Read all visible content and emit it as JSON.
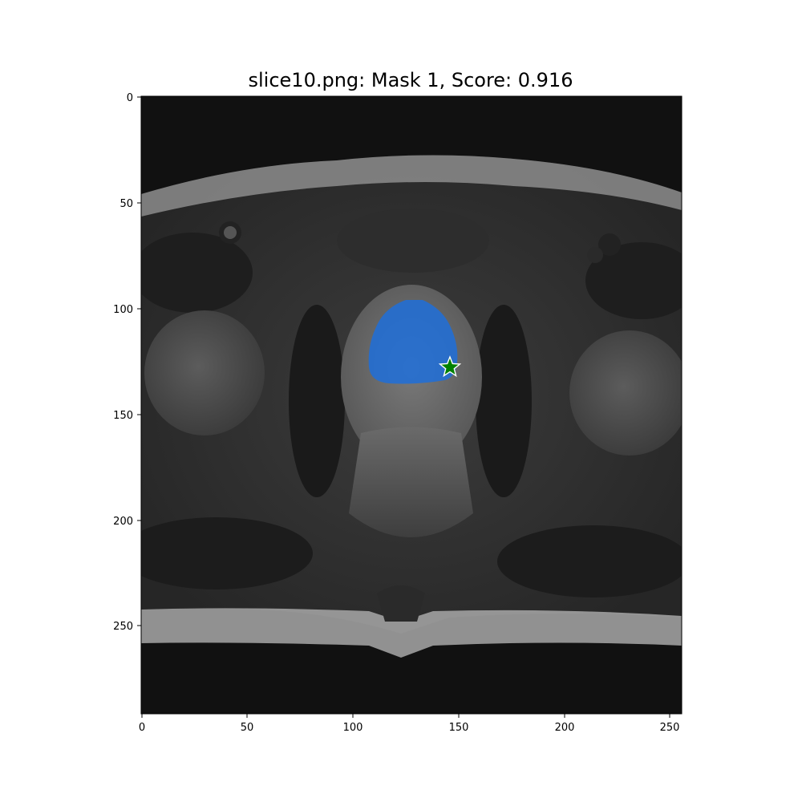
{
  "figure": {
    "title": "slice10.png: Mask 1, Score: 0.916"
  },
  "axes": {
    "x_ticks": [
      "0",
      "50",
      "100",
      "150",
      "200",
      "250"
    ],
    "y_ticks": [
      "0",
      "50",
      "100",
      "150",
      "200",
      "250"
    ],
    "x_range": [
      0,
      256
    ],
    "y_range": [
      0,
      292
    ]
  },
  "image": {
    "mask_color": "#1e6fd9",
    "marker_color": "#008000",
    "marker": "star-icon"
  },
  "chart_data": {
    "type": "heatmap",
    "title": "slice10.png: Mask 1, Score: 0.916",
    "xlim": [
      0,
      256
    ],
    "ylim": [
      292,
      0
    ],
    "x_ticks": [
      0,
      50,
      100,
      150,
      200,
      250
    ],
    "y_ticks": [
      0,
      50,
      100,
      150,
      200,
      250
    ],
    "prompt_point": {
      "x": 146,
      "y": 128
    },
    "mask_score": 0.916
  }
}
